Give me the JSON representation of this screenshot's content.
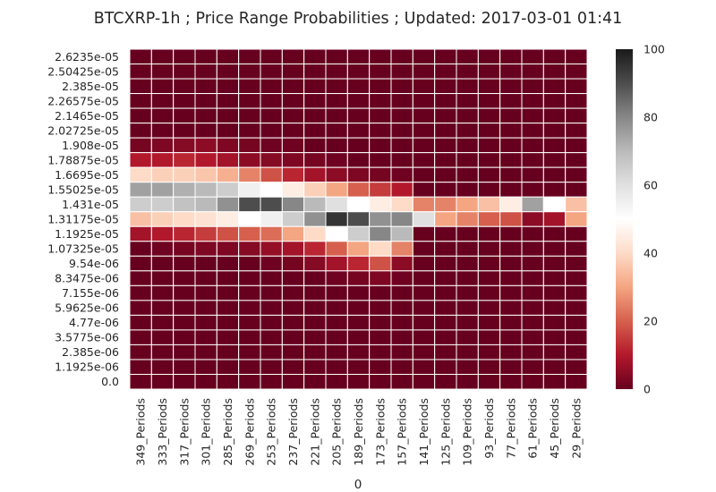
{
  "chart_data": {
    "type": "heatmap",
    "title": "BTCXRP-1h ; Price Range Probabilities ; Updated: 2017-03-01 01:41",
    "xlabel": "0",
    "ylabel": "",
    "x_categories": [
      "349_Periods",
      "333_Periods",
      "317_Periods",
      "301_Periods",
      "285_Periods",
      "269_Periods",
      "253_Periods",
      "237_Periods",
      "221_Periods",
      "205_Periods",
      "189_Periods",
      "173_Periods",
      "157_Periods",
      "141_Periods",
      "125_Periods",
      "109_Periods",
      "93_Periods",
      "77_Periods",
      "61_Periods",
      "45_Periods",
      "29_Periods"
    ],
    "y_categories": [
      "2.6235e-05",
      "2.50425e-05",
      "2.385e-05",
      "2.26575e-05",
      "2.1465e-05",
      "2.02725e-05",
      "1.908e-05",
      "1.78875e-05",
      "1.6695e-05",
      "1.55025e-05",
      "1.431e-05",
      "1.31175e-05",
      "1.1925e-05",
      "1.07325e-05",
      "9.54e-06",
      "8.3475e-06",
      "7.155e-06",
      "5.9625e-06",
      "4.77e-06",
      "3.5775e-06",
      "2.385e-06",
      "1.1925e-06",
      "0.0"
    ],
    "values": [
      [
        0,
        0,
        0,
        0,
        0,
        0,
        0,
        0,
        0,
        0,
        0,
        0,
        0,
        0,
        0,
        0,
        0,
        0,
        0,
        0,
        0
      ],
      [
        0,
        0,
        0,
        0,
        0,
        0,
        0,
        0,
        0,
        0,
        0,
        0,
        0,
        0,
        0,
        0,
        0,
        0,
        0,
        0,
        0
      ],
      [
        0,
        0,
        0,
        0,
        0,
        0,
        0,
        0,
        0,
        0,
        0,
        0,
        0,
        0,
        0,
        0,
        0,
        0,
        0,
        0,
        0
      ],
      [
        0,
        0,
        0,
        0,
        0,
        0,
        0,
        0,
        0,
        0,
        0,
        0,
        0,
        0,
        0,
        0,
        0,
        0,
        0,
        0,
        0
      ],
      [
        0,
        0,
        0,
        0,
        0,
        0,
        0,
        0,
        0,
        0,
        0,
        0,
        0,
        0,
        0,
        0,
        0,
        0,
        0,
        0,
        0
      ],
      [
        0,
        0,
        0,
        0,
        0,
        0,
        0,
        0,
        0,
        0,
        0,
        0,
        0,
        0,
        0,
        0,
        0,
        0,
        0,
        0,
        0
      ],
      [
        2,
        3,
        4,
        5,
        3,
        2,
        1,
        1,
        0,
        0,
        0,
        0,
        0,
        0,
        0,
        0,
        0,
        0,
        0,
        0,
        0
      ],
      [
        10,
        10,
        12,
        10,
        8,
        5,
        4,
        3,
        2,
        1,
        0,
        0,
        0,
        0,
        0,
        0,
        0,
        0,
        0,
        0,
        0
      ],
      [
        40,
        38,
        38,
        36,
        32,
        25,
        18,
        12,
        8,
        5,
        3,
        2,
        1,
        0,
        0,
        0,
        0,
        0,
        0,
        0,
        0
      ],
      [
        75,
        75,
        72,
        70,
        65,
        55,
        50,
        45,
        38,
        30,
        20,
        15,
        10,
        0,
        0,
        0,
        0,
        0,
        0,
        0,
        0
      ],
      [
        65,
        65,
        68,
        70,
        78,
        90,
        90,
        80,
        70,
        60,
        50,
        45,
        40,
        25,
        25,
        30,
        35,
        45,
        75,
        50,
        35
      ],
      [
        35,
        38,
        40,
        42,
        45,
        50,
        55,
        65,
        78,
        95,
        90,
        78,
        80,
        60,
        30,
        25,
        20,
        18,
        5,
        8,
        30
      ],
      [
        8,
        10,
        12,
        15,
        18,
        20,
        22,
        30,
        40,
        50,
        65,
        80,
        70,
        0,
        0,
        0,
        0,
        0,
        0,
        0,
        0
      ],
      [
        0,
        1,
        2,
        3,
        3,
        4,
        6,
        8,
        12,
        20,
        30,
        40,
        25,
        0,
        0,
        0,
        0,
        0,
        0,
        0,
        0
      ],
      [
        0,
        0,
        0,
        0,
        0,
        0,
        1,
        2,
        4,
        8,
        12,
        18,
        5,
        0,
        0,
        0,
        0,
        0,
        0,
        0,
        0
      ],
      [
        0,
        0,
        0,
        0,
        0,
        0,
        0,
        0,
        0,
        1,
        2,
        3,
        1,
        0,
        0,
        0,
        0,
        0,
        0,
        0,
        0
      ],
      [
        0,
        0,
        0,
        0,
        0,
        0,
        0,
        0,
        0,
        0,
        0,
        0,
        0,
        0,
        0,
        0,
        0,
        0,
        0,
        0,
        0
      ],
      [
        0,
        0,
        0,
        0,
        0,
        0,
        0,
        0,
        0,
        0,
        0,
        0,
        0,
        0,
        0,
        0,
        0,
        0,
        0,
        0,
        0
      ],
      [
        0,
        0,
        0,
        0,
        0,
        0,
        0,
        0,
        0,
        0,
        0,
        0,
        0,
        0,
        0,
        0,
        0,
        0,
        0,
        0,
        0
      ],
      [
        0,
        0,
        0,
        0,
        0,
        0,
        0,
        0,
        0,
        0,
        0,
        0,
        0,
        0,
        0,
        0,
        0,
        0,
        0,
        0,
        0
      ],
      [
        0,
        0,
        0,
        0,
        0,
        0,
        0,
        0,
        0,
        0,
        0,
        0,
        0,
        0,
        0,
        0,
        0,
        0,
        0,
        0,
        0
      ],
      [
        0,
        0,
        0,
        0,
        0,
        0,
        0,
        0,
        0,
        0,
        0,
        0,
        0,
        0,
        0,
        0,
        0,
        0,
        0,
        0,
        0
      ],
      [
        0,
        0,
        0,
        0,
        0,
        0,
        0,
        0,
        0,
        0,
        0,
        0,
        0,
        0,
        0,
        0,
        0,
        0,
        0,
        0,
        0
      ]
    ],
    "colorbar": {
      "min": 0,
      "max": 100,
      "ticks": [
        "0",
        "20",
        "40",
        "60",
        "80",
        "100"
      ],
      "colormap": "RdGy",
      "stops": [
        "#67001f",
        "#b2182b",
        "#d6604d",
        "#f4a582",
        "#fddbc7",
        "#ffffff",
        "#e0e0e0",
        "#bababa",
        "#878787",
        "#4d4d4d",
        "#1a1a1a"
      ]
    },
    "grid": false,
    "cell_border_color": "#ffffff"
  }
}
